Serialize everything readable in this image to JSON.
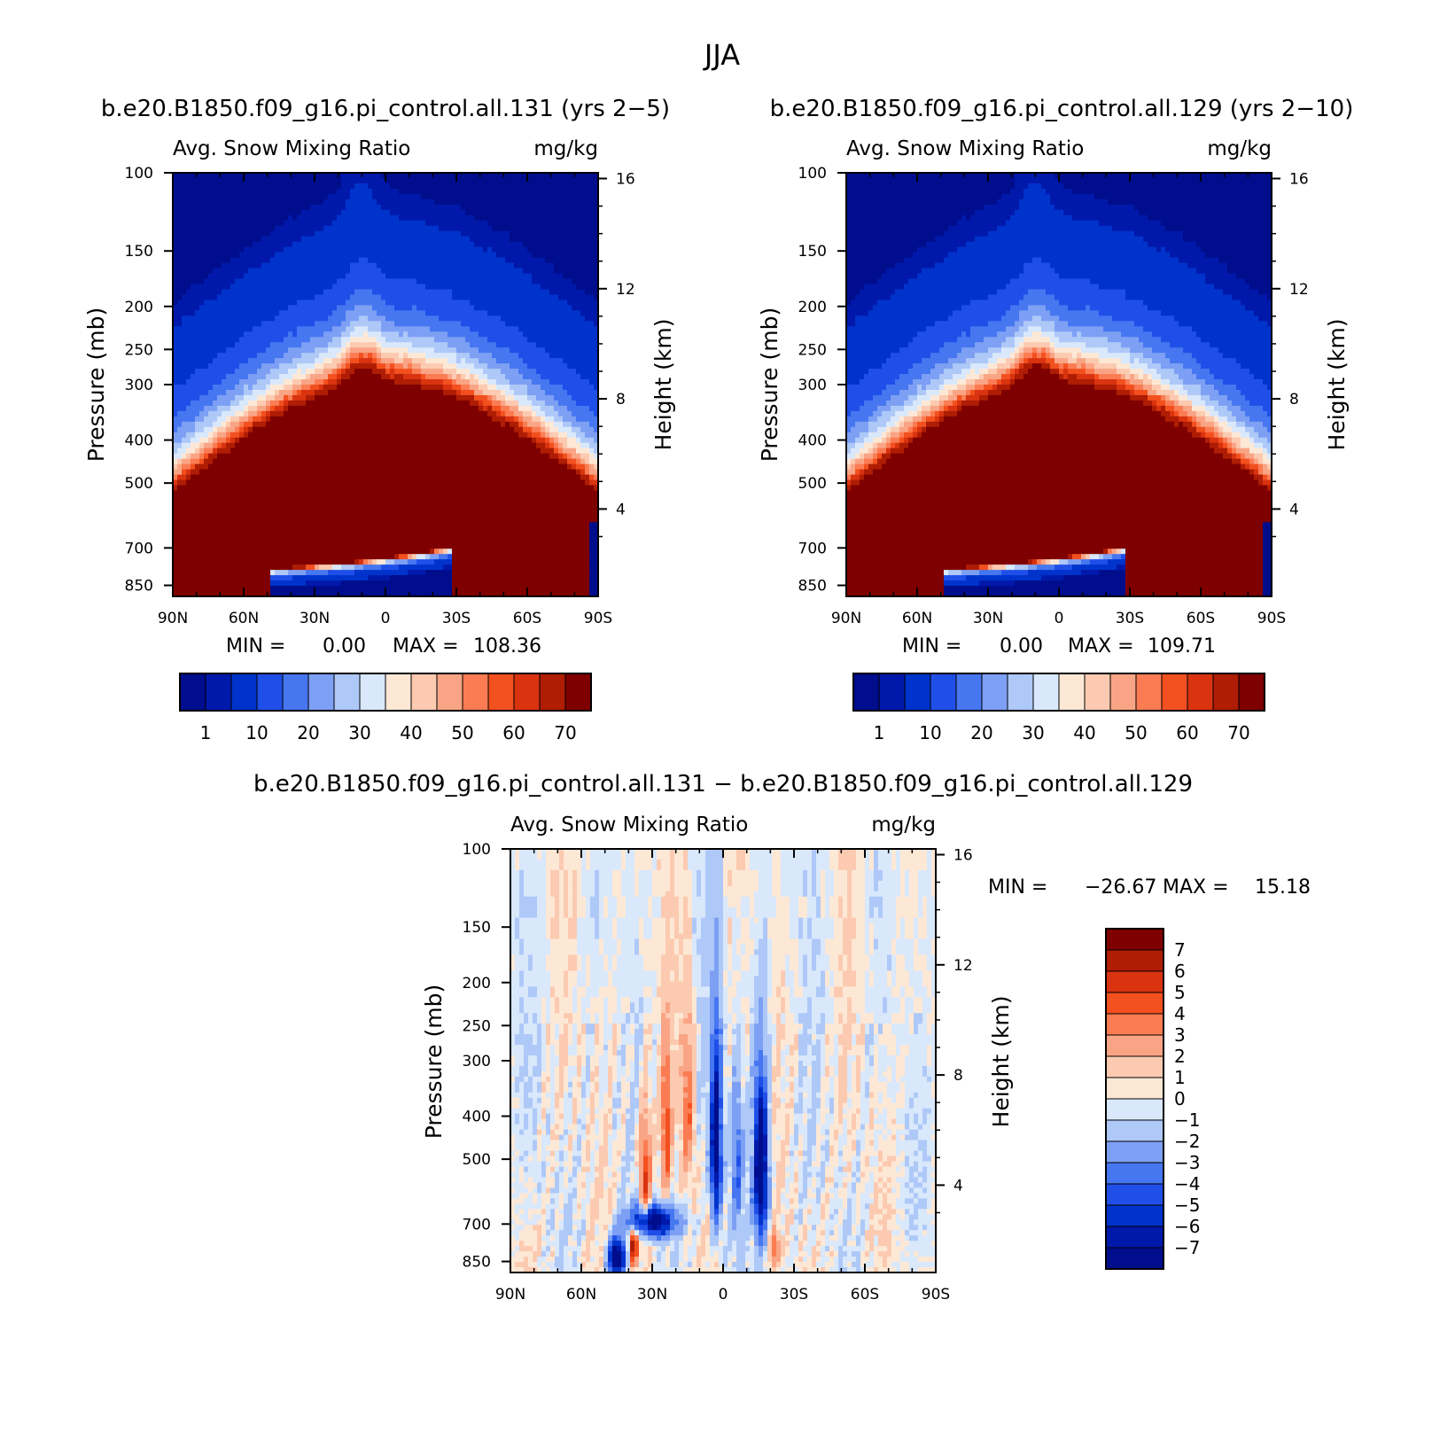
{
  "figure": {
    "title": "JJA"
  },
  "colors": {
    "abs": [
      "#000d8c",
      "#0019aa",
      "#0033cc",
      "#1f4fe8",
      "#4676f0",
      "#7da0f4",
      "#aec8f8",
      "#d9e8fb",
      "#fde8d6",
      "#fccab0",
      "#f9a585",
      "#fb7c53",
      "#f3501f",
      "#d93310",
      "#ae1d04",
      "#7f0000"
    ],
    "diff": [
      "#000d8c",
      "#0019aa",
      "#0033cc",
      "#1f4fe8",
      "#4676f0",
      "#7da0f4",
      "#aec8f8",
      "#d9e8fb",
      "#fde8d6",
      "#fccab0",
      "#f9a585",
      "#fb7c53",
      "#f3501f",
      "#d93310",
      "#ae1d04",
      "#7f0000"
    ]
  },
  "chart_data": [
    {
      "type": "heatmap",
      "case_title": "b.e20.B1850.f09_g16.pi_control.all.131 (yrs 2−5)",
      "title": "Avg. Snow Mixing Ratio",
      "units": "mg/kg",
      "ylabel": "Pressure (mb)",
      "ylabel_right": "Height (km)",
      "x_ticks": [
        "90N",
        "60N",
        "30N",
        "0",
        "30S",
        "60S",
        "90S"
      ],
      "y_ticks": [
        "100",
        "150",
        "200",
        "250",
        "300",
        "400",
        "500",
        "700",
        "850"
      ],
      "y_right_ticks": [
        "16",
        "12",
        "8",
        "4"
      ],
      "min_label": "MIN =",
      "min_value": "0.00",
      "max_label": "MAX =",
      "max_value": "108.36",
      "colorbar_labels": [
        "1",
        "10",
        "20",
        "30",
        "40",
        "50",
        "60",
        "70"
      ],
      "centers": [
        {
          "lat": -39,
          "p": 620,
          "amp": 100,
          "wlat": 16,
          "wp": 120
        },
        {
          "lat": -10,
          "p": 470,
          "amp": 108,
          "wlat": 8,
          "wp": 160
        },
        {
          "lat": 32,
          "p": 610,
          "amp": 78,
          "wlat": 8,
          "wp": 95
        }
      ]
    },
    {
      "type": "heatmap",
      "case_title": "b.e20.B1850.f09_g16.pi_control.all.129 (yrs 2−10)",
      "title": "Avg. Snow Mixing Ratio",
      "units": "mg/kg",
      "ylabel": "Pressure (mb)",
      "ylabel_right": "Height (km)",
      "x_ticks": [
        "90N",
        "60N",
        "30N",
        "0",
        "30S",
        "60S",
        "90S"
      ],
      "y_ticks": [
        "100",
        "150",
        "200",
        "250",
        "300",
        "400",
        "500",
        "700",
        "850"
      ],
      "y_right_ticks": [
        "16",
        "12",
        "8",
        "4"
      ],
      "min_label": "MIN =",
      "min_value": "0.00",
      "max_label": "MAX =",
      "max_value": "109.71",
      "colorbar_labels": [
        "1",
        "10",
        "20",
        "30",
        "40",
        "50",
        "60",
        "70"
      ],
      "centers": [
        {
          "lat": -39,
          "p": 620,
          "amp": 100,
          "wlat": 16,
          "wp": 120
        },
        {
          "lat": -10,
          "p": 470,
          "amp": 110,
          "wlat": 8,
          "wp": 160
        },
        {
          "lat": 32,
          "p": 610,
          "amp": 80,
          "wlat": 8,
          "wp": 95
        }
      ]
    },
    {
      "type": "heatmap",
      "case_title": "b.e20.B1850.f09_g16.pi_control.all.131 − b.e20.B1850.f09_g16.pi_control.all.129",
      "title": "Avg. Snow Mixing Ratio",
      "units": "mg/kg",
      "ylabel": "Pressure (mb)",
      "ylabel_right": "Height (km)",
      "x_ticks": [
        "90N",
        "60N",
        "30N",
        "0",
        "30S",
        "60S",
        "90S"
      ],
      "y_ticks": [
        "100",
        "150",
        "200",
        "250",
        "300",
        "400",
        "500",
        "700",
        "850"
      ],
      "y_right_ticks": [
        "16",
        "12",
        "8",
        "4"
      ],
      "min_label": "MIN =",
      "min_value": "−26.67",
      "max_label": "MAX =",
      "max_value": "15.18",
      "colorbar_labels": [
        "7",
        "6",
        "5",
        "4",
        "3",
        "2",
        "1",
        "0",
        "−1",
        "−2",
        "−3",
        "−4",
        "−5",
        "−6",
        "−7"
      ]
    }
  ]
}
